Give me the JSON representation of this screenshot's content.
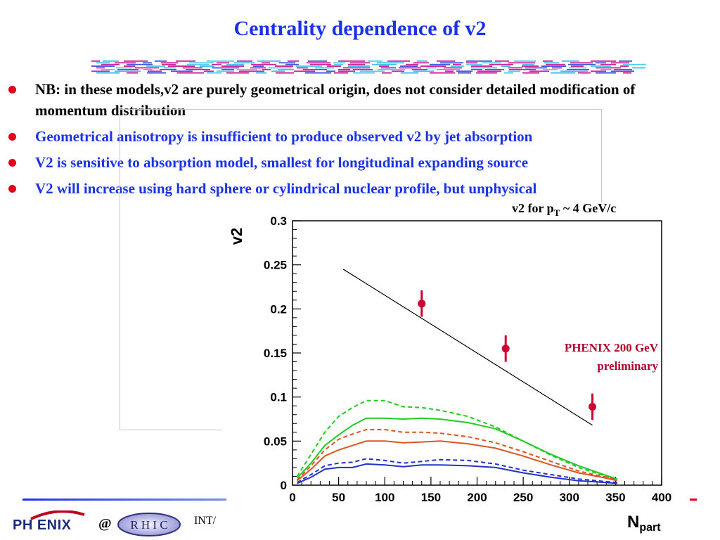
{
  "slide": {
    "title": "Centrality dependence of v2",
    "bullets": [
      {
        "text": "NB: in these models,v2 are purely geometrical origin, does not consider detailed modification of momentum distribution",
        "color": "#000000"
      },
      {
        "text": "Geometrical anisotropy is insufficient to produce observed v2 by jet absorption",
        "color": "#1a33e6"
      },
      {
        "text": "V2 is sensitive to absorption model, smallest for longitudinal expanding source",
        "color": "#1a33e6"
      },
      {
        "text": "V2 will increase using hard sphere or cylindrical nuclear profile, but unphysical",
        "color": "#1a33e6"
      }
    ]
  },
  "footer": {
    "logo_text": "PH ENIX",
    "at": "@",
    "rhic_text": "R H I C",
    "int_text": "INT/"
  },
  "chart_data": {
    "type": "line",
    "title": "v2  for pT ~ 4 GeV/c",
    "title_main": "v2  for p",
    "title_sub": "T",
    "title_tail": " ~ 4 GeV/c",
    "ylabel": "v2",
    "xlabel_main": "N",
    "xlabel_sub": "part",
    "xlim": [
      0,
      400
    ],
    "ylim": [
      0,
      0.3
    ],
    "xticks": [
      0,
      50,
      100,
      150,
      200,
      250,
      300,
      350,
      400
    ],
    "yticks": [
      0,
      0.05,
      0.1,
      0.15,
      0.2,
      0.25,
      0.3
    ],
    "ytick_labels": [
      "0",
      "0.05",
      "0.1",
      "0.15",
      "0.2",
      "0.25",
      "0.3"
    ],
    "annotation_line1": "PHENIX 200 GeV",
    "annotation_line2": "preliminary",
    "annotation_color": "#b0002a",
    "data_points": {
      "color": "#cc0033",
      "x": [
        140,
        231,
        325
      ],
      "y": [
        0.206,
        0.155,
        0.089
      ],
      "yerr": [
        0.015,
        0.015,
        0.015
      ]
    },
    "reference_line": {
      "x": [
        55,
        325
      ],
      "y": [
        0.245,
        0.068
      ],
      "color": "#000000"
    },
    "series": [
      {
        "color": "#22cc22",
        "style": "dashed",
        "x": [
          5,
          20,
          35,
          50,
          65,
          80,
          100,
          120,
          140,
          160,
          190,
          220,
          250,
          280,
          310,
          340,
          352
        ],
        "y": [
          0.01,
          0.035,
          0.06,
          0.078,
          0.088,
          0.096,
          0.096,
          0.089,
          0.088,
          0.085,
          0.078,
          0.066,
          0.05,
          0.034,
          0.02,
          0.01,
          0.006
        ]
      },
      {
        "color": "#22cc22",
        "style": "solid",
        "x": [
          5,
          20,
          35,
          50,
          65,
          80,
          100,
          120,
          140,
          160,
          190,
          220,
          250,
          280,
          310,
          340,
          352
        ],
        "y": [
          0.008,
          0.025,
          0.045,
          0.057,
          0.068,
          0.076,
          0.076,
          0.075,
          0.076,
          0.075,
          0.071,
          0.064,
          0.05,
          0.035,
          0.022,
          0.011,
          0.007
        ]
      },
      {
        "color": "#dd5522",
        "style": "dashed",
        "x": [
          5,
          20,
          35,
          50,
          65,
          80,
          100,
          120,
          140,
          160,
          190,
          220,
          250,
          280,
          310,
          340,
          352
        ],
        "y": [
          0.006,
          0.022,
          0.04,
          0.052,
          0.058,
          0.063,
          0.063,
          0.06,
          0.06,
          0.059,
          0.055,
          0.048,
          0.038,
          0.027,
          0.016,
          0.009,
          0.006
        ]
      },
      {
        "color": "#dd5522",
        "style": "solid",
        "x": [
          5,
          20,
          35,
          50,
          65,
          80,
          100,
          120,
          140,
          160,
          190,
          220,
          250,
          280,
          310,
          340,
          352
        ],
        "y": [
          0.005,
          0.018,
          0.033,
          0.04,
          0.045,
          0.05,
          0.05,
          0.048,
          0.049,
          0.05,
          0.047,
          0.042,
          0.033,
          0.023,
          0.014,
          0.008,
          0.005
        ]
      },
      {
        "color": "#2233cc",
        "style": "dashed",
        "x": [
          5,
          20,
          35,
          50,
          65,
          80,
          100,
          120,
          140,
          160,
          190,
          220,
          250,
          280,
          310,
          340,
          352
        ],
        "y": [
          0.003,
          0.012,
          0.022,
          0.025,
          0.026,
          0.03,
          0.028,
          0.025,
          0.027,
          0.029,
          0.028,
          0.024,
          0.017,
          0.012,
          0.007,
          0.004,
          0.003
        ]
      },
      {
        "color": "#2233cc",
        "style": "solid",
        "x": [
          5,
          20,
          35,
          50,
          65,
          80,
          100,
          120,
          140,
          160,
          190,
          220,
          250,
          280,
          310,
          340,
          352
        ],
        "y": [
          0.002,
          0.009,
          0.018,
          0.02,
          0.02,
          0.024,
          0.023,
          0.021,
          0.023,
          0.023,
          0.022,
          0.02,
          0.014,
          0.009,
          0.005,
          0.003,
          0.002
        ]
      }
    ]
  }
}
